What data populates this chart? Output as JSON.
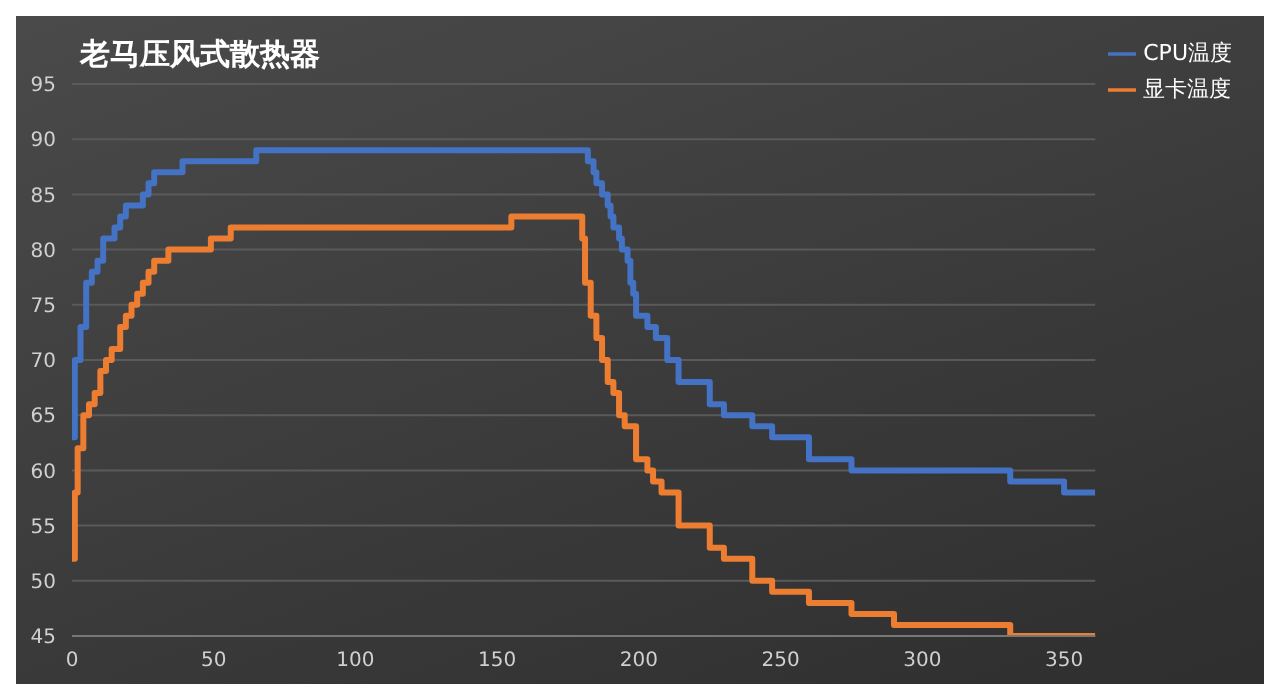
{
  "chart_data": {
    "type": "step",
    "title": "老马压风式散热器",
    "xlim": [
      0,
      361
    ],
    "xticks": [
      0,
      50,
      100,
      150,
      200,
      250,
      300,
      350
    ],
    "ylim": [
      45,
      95
    ],
    "yticks": [
      45,
      50,
      55,
      60,
      65,
      70,
      75,
      80,
      85,
      90,
      95
    ],
    "grid": "y",
    "legend": "top right",
    "series": [
      {
        "name": "CPU温度",
        "color": "#4472c4",
        "x": [
          0,
          1,
          3,
          5,
          7,
          9,
          11,
          13,
          15,
          17,
          19,
          23,
          25,
          27,
          29,
          39,
          65,
          182,
          184,
          185,
          187,
          189,
          190,
          191,
          193,
          194,
          196,
          197,
          198,
          199,
          203,
          206,
          210,
          214,
          225,
          230,
          240,
          247,
          260,
          275,
          331,
          350,
          361
        ],
        "values": [
          63,
          70,
          73,
          77,
          78,
          79,
          81,
          81,
          82,
          83,
          84,
          84,
          85,
          86,
          87,
          88,
          89,
          88,
          87,
          86,
          85,
          84,
          83,
          82,
          81,
          80,
          79,
          77,
          76,
          74,
          73,
          72,
          70,
          68,
          66,
          65,
          64,
          63,
          61,
          60,
          59,
          58,
          58
        ]
      },
      {
        "name": "显卡温度",
        "color": "#ed7d31",
        "x": [
          0,
          1,
          2,
          4,
          6,
          8,
          10,
          12,
          14,
          17,
          19,
          21,
          23,
          25,
          27,
          29,
          34,
          49,
          56,
          155,
          180,
          181,
          183,
          185,
          187,
          189,
          191,
          193,
          195,
          199,
          203,
          205,
          208,
          214,
          225,
          230,
          240,
          247,
          260,
          275,
          290,
          331,
          361
        ],
        "values": [
          52,
          58,
          62,
          65,
          66,
          67,
          69,
          70,
          71,
          73,
          74,
          75,
          76,
          77,
          78,
          79,
          80,
          81,
          82,
          83,
          81,
          77,
          74,
          72,
          70,
          68,
          67,
          65,
          64,
          61,
          60,
          59,
          58,
          55,
          53,
          52,
          50,
          49,
          48,
          47,
          46,
          45,
          45
        ]
      }
    ]
  }
}
